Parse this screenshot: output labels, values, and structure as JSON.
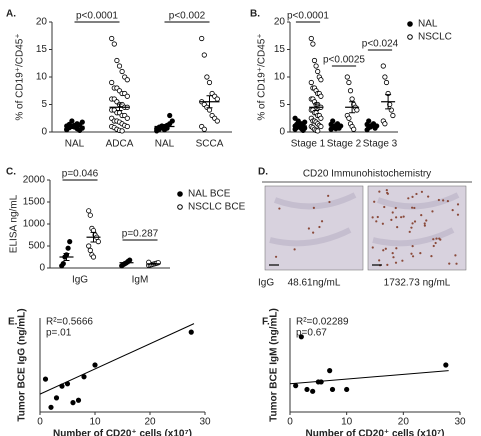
{
  "chart_data": [
    {
      "type": "strip",
      "panel": "A.",
      "ylabel": "% of CD19⁺/CD45⁺",
      "categories": [
        "NAL",
        "ADCA",
        "NAL",
        "SCCA"
      ],
      "ylim": [
        0,
        20
      ],
      "yticks": [
        0,
        5,
        10,
        15,
        20
      ],
      "series": [
        {
          "color": "#000000",
          "markers": [
            "filled",
            "open",
            "filled",
            "open"
          ],
          "values": [
            [
              0.5,
              0.8,
              1,
              1.2,
              1.5,
              0.3,
              0.7,
              1.1,
              1.4,
              2,
              0.9,
              0.6,
              1.3,
              1.8,
              0.4
            ],
            [
              17,
              16,
              13,
              12,
              11,
              10,
              9.5,
              9,
              8,
              8,
              7.5,
              7,
              7,
              6.5,
              6,
              6,
              5.5,
              5,
              5,
              4.5,
              4.5,
              4,
              4,
              3.5,
              3.5,
              3,
              3,
              2.5,
              2.5,
              2,
              2,
              1.8,
              1.5,
              1.2,
              1,
              1,
              0.8,
              0.5,
              0.3,
              0.2
            ],
            [
              0.2,
              0.5,
              0.8,
              1,
              1.2,
              1.5,
              2,
              0.6,
              0.9,
              1.1,
              0.4,
              0.7,
              3
            ],
            [
              17,
              14,
              10,
              9,
              7,
              6.5,
              6,
              5.5,
              5,
              4.5,
              4,
              3,
              2.5,
              2,
              1,
              0.5
            ]
          ],
          "mean": [
            1,
            4.5,
            1,
            5.5
          ],
          "sem": [
            0.15,
            0.6,
            0.2,
            1.1
          ]
        }
      ],
      "annotations": [
        "p<0.0001",
        "p<0.002"
      ]
    },
    {
      "type": "strip",
      "panel": "B.",
      "ylabel": "% of CD19⁺/CD45⁺",
      "categories": [
        "Stage 1",
        "Stage 2",
        "Stage 3"
      ],
      "ylim": [
        0,
        20
      ],
      "yticks": [
        0,
        5,
        10,
        15,
        20
      ],
      "series": [
        {
          "name": "NAL",
          "color": "#000000",
          "marker": "filled",
          "values": [
            [
              0.5,
              0.8,
              1,
              1.2,
              1.5,
              0.3,
              0.7,
              1.1,
              1.4,
              2,
              0.9,
              0.6,
              1.3,
              1.8,
              2.5
            ],
            [
              0.5,
              0.8,
              1,
              1.2,
              1.5,
              0.7,
              1.1,
              1.4,
              2,
              0.9,
              0.6,
              1.3
            ],
            [
              0.4,
              0.8,
              1,
              1.2,
              1.5,
              0.7,
              1.1,
              1.4,
              2,
              0.9
            ]
          ],
          "mean": [
            1.1,
            1.1,
            1.1
          ],
          "sem": [
            0.15,
            0.15,
            0.15
          ]
        },
        {
          "name": "NSCLC",
          "color": "#000000",
          "marker": "open",
          "values": [
            [
              17,
              16,
              13,
              12,
              11,
              10,
              9.5,
              9,
              8,
              8,
              7.5,
              7,
              7,
              6.5,
              6,
              6,
              5.5,
              5,
              5,
              4.5,
              4.5,
              4,
              4,
              3.5,
              3.5,
              3,
              3,
              2.5,
              2.5,
              2,
              2,
              1.8,
              1.5,
              1.2,
              1,
              1,
              0.8,
              0.5,
              0.3,
              0.2
            ],
            [
              10,
              9,
              7.5,
              6,
              5,
              4.5,
              4,
              3,
              2.5,
              1.5,
              1,
              0.5
            ],
            [
              12,
              10,
              9,
              7,
              5,
              4,
              3,
              2,
              1.5
            ]
          ],
          "mean": [
            4.5,
            4.5,
            5.5
          ],
          "sem": [
            0.6,
            1,
            1.3
          ]
        }
      ],
      "annotations": [
        "p<0.0001",
        "p<0.0025",
        "p<0.024"
      ]
    },
    {
      "type": "strip",
      "panel": "C.",
      "ylabel": "ELISA ng/mL",
      "categories": [
        "IgG",
        "IgM"
      ],
      "ylim": [
        0,
        2000
      ],
      "yticks": [
        0,
        500,
        1000,
        1500,
        2000
      ],
      "series": [
        {
          "name": "NAL BCE",
          "color": "#000000",
          "marker": "filled",
          "values": [
            [
              50,
              100,
              250,
              300,
              450,
              600
            ],
            [
              50,
              80,
              100,
              120,
              150,
              180
            ]
          ],
          "mean": [
            250,
            120
          ],
          "sem": [
            80,
            20
          ]
        },
        {
          "name": "NSCLC BCE",
          "color": "#000000",
          "marker": "open",
          "values": [
            [
              1300,
              1200,
              900,
              850,
              750,
              700,
              600,
              500,
              400,
              300,
              250
            ],
            [
              60,
              70,
              80,
              90,
              100,
              110,
              120,
              130
            ]
          ],
          "mean": [
            700,
            95
          ],
          "sem": [
            110,
            10
          ]
        }
      ],
      "annotations": [
        "p=0.046",
        "p=0.287"
      ]
    },
    {
      "type": "image",
      "panel": "D.",
      "title": "CD20 Immunohistochemistry",
      "row_label": "IgG",
      "captions": [
        "48.61ng/mL",
        "1732.73 ng/mL"
      ]
    },
    {
      "type": "scatter",
      "panel": "E.",
      "ylabel": "Tumor BCE  IgG (ng/mL)",
      "xlabel": "Number of CD20⁺ cells  (x10⁷)",
      "xlim": [
        0,
        30
      ],
      "xticks": [
        0,
        10,
        20,
        30
      ],
      "ylim": [
        0,
        2000
      ],
      "x": [
        1,
        2,
        3,
        4,
        5,
        6,
        7,
        8,
        10,
        27.5
      ],
      "values": [
        700,
        100,
        300,
        550,
        600,
        200,
        250,
        750,
        1000,
        1700
      ],
      "fit": {
        "x": [
          0,
          28
        ],
        "y": [
          380,
          1880
        ]
      },
      "annotations": [
        "R²=0.5666",
        "p=.01"
      ]
    },
    {
      "type": "scatter",
      "panel": "F.",
      "ylabel": "Tumor BCE  IgM (ng/mL)",
      "xlabel": "Number of CD20⁺ cells  (x10⁷)",
      "xlim": [
        0,
        30
      ],
      "xticks": [
        0,
        10,
        20,
        30
      ],
      "ylim": [
        0,
        250
      ],
      "x": [
        1,
        2,
        3,
        4,
        5,
        5.5,
        7,
        7.5,
        10,
        27.5
      ],
      "values": [
        70,
        200,
        60,
        55,
        80,
        80,
        110,
        60,
        60,
        125
      ],
      "fit": {
        "x": [
          0,
          28
        ],
        "y": [
          75,
          110
        ]
      },
      "annotations": [
        "R²=0.02289",
        "p=0.67"
      ]
    }
  ]
}
